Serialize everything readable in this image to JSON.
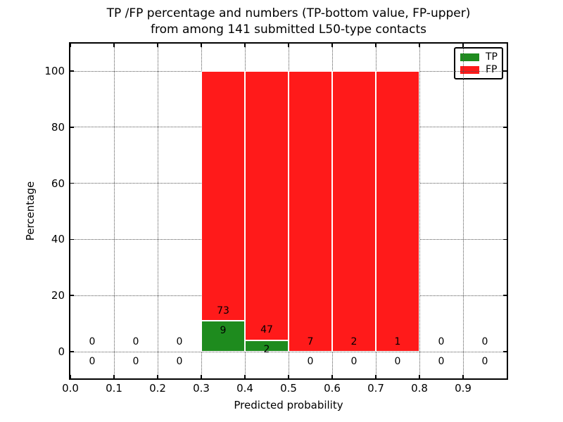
{
  "title": {
    "line1": "TP /FP percentage and numbers (TP-bottom value, FP-upper)",
    "line2": "from among 141 submitted L50-type contacts"
  },
  "chart_data": {
    "type": "bar",
    "stacked": true,
    "title": "TP /FP percentage and numbers (TP-bottom value, FP-upper) from among 141 submitted L50-type contacts",
    "xlabel": "Predicted probability",
    "ylabel": "Percentage",
    "xlim": [
      0.0,
      1.0
    ],
    "ylim": [
      -9.5,
      110
    ],
    "grid": true,
    "x_tick_values": [
      0.0,
      0.1,
      0.2,
      0.3,
      0.4,
      0.5,
      0.6,
      0.7,
      0.8,
      0.9
    ],
    "x_tick_labels": [
      "0.0",
      "0.1",
      "0.2",
      "0.3",
      "0.4",
      "0.5",
      "0.6",
      "0.7",
      "0.8",
      "0.9"
    ],
    "y_tick_values": [
      0,
      20,
      40,
      60,
      80,
      100
    ],
    "y_tick_labels": [
      "0",
      "20",
      "40",
      "60",
      "80",
      "100"
    ],
    "legend": {
      "position": "upper right",
      "entries": [
        {
          "label": "TP",
          "color": "#1e8b1e"
        },
        {
          "label": "FP",
          "color": "#ff1a1a"
        }
      ]
    },
    "bins": [
      {
        "x_range": [
          0.0,
          0.1
        ],
        "tp_count": 0,
        "fp_count": 0,
        "tp_pct": 0,
        "fp_pct": 0
      },
      {
        "x_range": [
          0.1,
          0.2
        ],
        "tp_count": 0,
        "fp_count": 0,
        "tp_pct": 0,
        "fp_pct": 0
      },
      {
        "x_range": [
          0.2,
          0.3
        ],
        "tp_count": 0,
        "fp_count": 0,
        "tp_pct": 0,
        "fp_pct": 0
      },
      {
        "x_range": [
          0.3,
          0.4
        ],
        "tp_count": 9,
        "fp_count": 73,
        "tp_pct": 10.98,
        "fp_pct": 89.02
      },
      {
        "x_range": [
          0.4,
          0.5
        ],
        "tp_count": 2,
        "fp_count": 47,
        "tp_pct": 4.08,
        "fp_pct": 95.92
      },
      {
        "x_range": [
          0.5,
          0.6
        ],
        "tp_count": 0,
        "fp_count": 7,
        "tp_pct": 0,
        "fp_pct": 100
      },
      {
        "x_range": [
          0.6,
          0.7
        ],
        "tp_count": 0,
        "fp_count": 2,
        "tp_pct": 0,
        "fp_pct": 100
      },
      {
        "x_range": [
          0.7,
          0.8
        ],
        "tp_count": 0,
        "fp_count": 1,
        "tp_pct": 0,
        "fp_pct": 100
      },
      {
        "x_range": [
          0.8,
          0.9
        ],
        "tp_count": 0,
        "fp_count": 0,
        "tp_pct": 0,
        "fp_pct": 0
      },
      {
        "x_range": [
          0.9,
          1.0
        ],
        "tp_count": 0,
        "fp_count": 0,
        "tp_pct": 0,
        "fp_pct": 0
      }
    ]
  },
  "colors": {
    "tp_green": "#1e8b1e",
    "fp_red": "#ff1a1a",
    "axis": "#000000",
    "grid": "#555555",
    "label_text": "#000000",
    "background": "#ffffff"
  }
}
